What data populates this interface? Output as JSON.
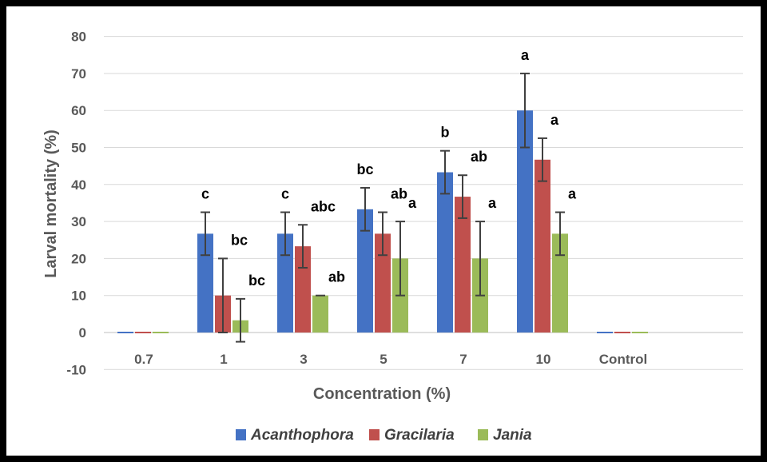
{
  "chart_data": {
    "type": "bar",
    "title": "",
    "xlabel": "Concentration (%)",
    "ylabel": "Larval mortality (%)",
    "ylim": [
      -10,
      80
    ],
    "yticks": [
      -10,
      0,
      10,
      20,
      30,
      40,
      50,
      60,
      70,
      80
    ],
    "categories": [
      "0.7",
      "1",
      "3",
      "5",
      "7",
      "10",
      "Control"
    ],
    "grid": true,
    "legend_position": "bottom",
    "series": [
      {
        "name": "Acanthophora",
        "color": "#4472c4",
        "values": [
          0,
          26.7,
          26.7,
          33.3,
          43.3,
          60,
          0
        ],
        "errors": [
          0,
          5.8,
          5.8,
          5.8,
          5.8,
          10,
          0
        ],
        "labels": [
          "",
          "c",
          "c",
          "bc",
          "b",
          "a",
          ""
        ]
      },
      {
        "name": "Gracilaria",
        "color": "#c0504d",
        "values": [
          0,
          10,
          23.3,
          26.7,
          36.7,
          46.7,
          0
        ],
        "errors": [
          0,
          10,
          5.8,
          5.8,
          5.8,
          5.8,
          0
        ],
        "labels": [
          "",
          "bc",
          "abc",
          "ab",
          "ab",
          "a",
          ""
        ]
      },
      {
        "name": "Jania",
        "color": "#9bbb59",
        "values": [
          0,
          3.3,
          10,
          20,
          20,
          26.7,
          0
        ],
        "errors": [
          0,
          5.8,
          0,
          10,
          10,
          5.8,
          0
        ],
        "labels": [
          "",
          "bc",
          "ab",
          "a",
          "a",
          "a",
          ""
        ]
      }
    ]
  }
}
